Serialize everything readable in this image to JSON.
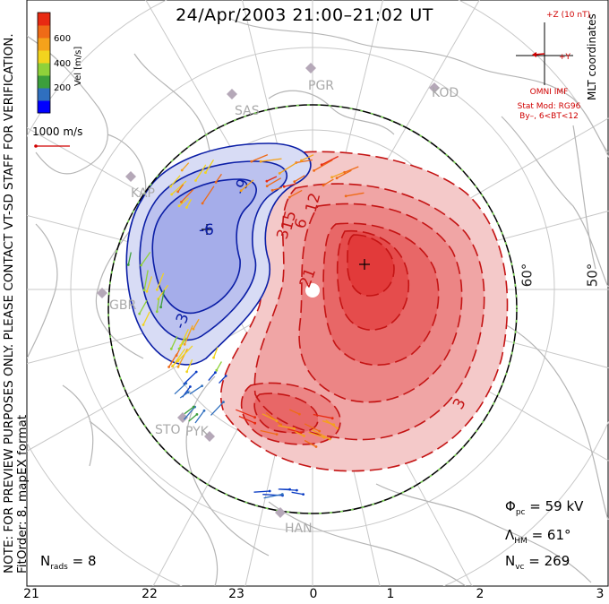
{
  "title": "24/Apr/2003 21:00–21:02 UT",
  "side_note": {
    "line1": "NOTE: FOR PREVIEW PURPOSES ONLY. PLEASE CONTACT VT-SD STAFF FOR VERIFICATION.",
    "line2": "FitOrder: 8, mapEX format"
  },
  "coord_label": "MLT coordinates",
  "colorbar": {
    "label": "Vel [m/s]",
    "ticks": [
      "600",
      "400",
      "200"
    ],
    "colors": [
      "#0000ff",
      "#2f6fbf",
      "#3c9f3c",
      "#8fd13a",
      "#f2d41e",
      "#f5a21b",
      "#ef6b17",
      "#e82a12"
    ]
  },
  "reference_vector": "1000 m/s",
  "imf": {
    "z_label": "+Z (10 nT)",
    "y_label": "+Y",
    "source": "OMNI IMF",
    "model_line1": "Stat Mod: RG96",
    "model_line2": "By–, 6<BT<12"
  },
  "stats": {
    "phi_pc_symbol": "Φ",
    "phi_pc_sub": "pc",
    "phi_pc_value": "= 59 kV",
    "lambda_hm_symbol": "Λ",
    "lambda_hm_sub": "HM",
    "lambda_hm_value": "= 61°",
    "n_vc_symbol": "N",
    "n_vc_sub": "vc",
    "n_vc_value": "= 269"
  },
  "nrads": {
    "symbol": "N",
    "sub": "rads",
    "value": "= 8"
  },
  "mlt_axis": [
    "21",
    "22",
    "23",
    "0",
    "1",
    "2",
    "3"
  ],
  "latitude_labels": [
    "60°",
    "50°"
  ],
  "radar_sites": [
    "PGR",
    "KOD",
    "SAS",
    "KAP",
    "GBR",
    "STO",
    "PYK",
    "HAN"
  ],
  "contour_labels": [
    "-9",
    "-6",
    "-3",
    "3",
    "6",
    "12",
    "15",
    "21",
    "3"
  ],
  "colors": {
    "negative_fill": "#3d4ee0",
    "positive_fill": "#ef3a3a",
    "negative_line": "#0b1ea6",
    "positive_line": "#c41414",
    "imf_red": "#d00000",
    "land_outline": "#b5b5b5",
    "grid": "#c8c8c8",
    "site_gray": "#b5a8b8"
  }
}
